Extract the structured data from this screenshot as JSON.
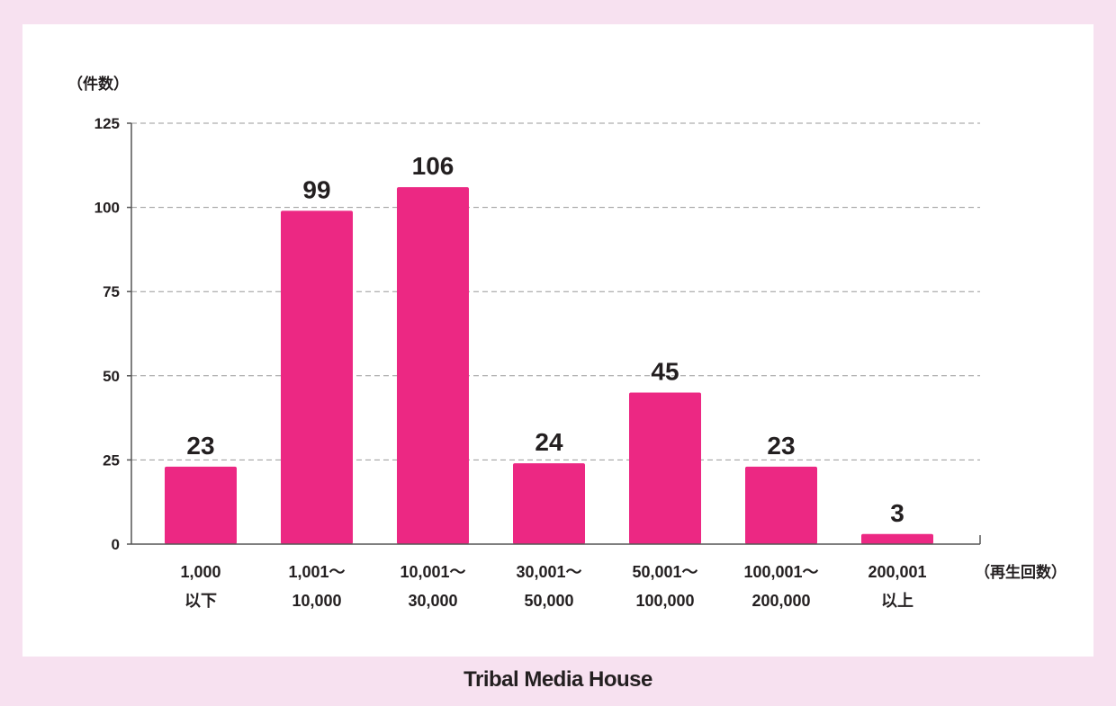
{
  "chart_data": {
    "type": "bar",
    "categories": [
      [
        "1,000",
        "以下"
      ],
      [
        "1,001～",
        "10,000"
      ],
      [
        "10,001～",
        "30,000"
      ],
      [
        "30,001～",
        "50,000"
      ],
      [
        "50,001～",
        "100,000"
      ],
      [
        "100,001～",
        "200,000"
      ],
      [
        "200,001",
        "以上"
      ]
    ],
    "values": [
      23,
      99,
      106,
      24,
      45,
      23,
      3
    ],
    "ylabel": "（件数）",
    "xlabel": "（再生回数）",
    "ylim": [
      0,
      125
    ],
    "yticks": [
      0,
      25,
      50,
      75,
      100,
      125
    ],
    "grid": true,
    "bar_color": "#ec2883"
  },
  "footer": {
    "brand": "Tribal Media House"
  },
  "colors": {
    "background": "#f7e1f0",
    "panel": "#ffffff",
    "bar": "#ec2883",
    "text": "#231f20",
    "grid": "#9a9a9a"
  }
}
